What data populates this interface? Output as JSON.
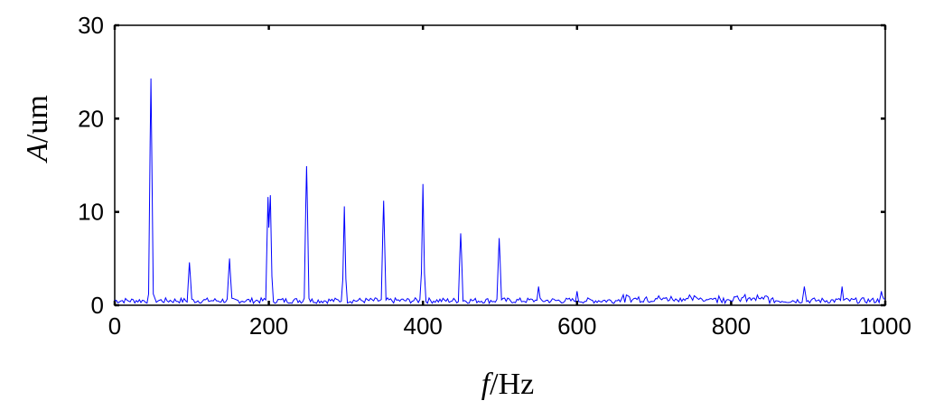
{
  "chart_data": {
    "type": "line",
    "title": "",
    "xlabel": {
      "symbol": "f",
      "unit": "/Hz"
    },
    "ylabel": {
      "symbol": "A",
      "unit": "/um"
    },
    "xlim": [
      0,
      1000
    ],
    "ylim": [
      0,
      30
    ],
    "x_ticks": [
      "0",
      "200",
      "400",
      "600",
      "800",
      "1000"
    ],
    "y_ticks": [
      "0",
      "10",
      "20",
      "30"
    ],
    "grid": false,
    "line_color": "#0000ff",
    "series": [
      {
        "peaks": [
          {
            "x": 47,
            "y": 24.3
          },
          {
            "x": 97,
            "y": 4.6
          },
          {
            "x": 149,
            "y": 5.0
          },
          {
            "x": 199,
            "y": 11.6
          },
          {
            "x": 202,
            "y": 11.8
          },
          {
            "x": 249,
            "y": 14.9
          },
          {
            "x": 298,
            "y": 10.6
          },
          {
            "x": 349,
            "y": 11.2
          },
          {
            "x": 400,
            "y": 13.0
          },
          {
            "x": 449,
            "y": 7.7
          },
          {
            "x": 499,
            "y": 7.2
          },
          {
            "x": 550,
            "y": 2.0
          },
          {
            "x": 600,
            "y": 1.5
          },
          {
            "x": 895,
            "y": 2.0
          },
          {
            "x": 944,
            "y": 2.0
          },
          {
            "x": 995,
            "y": 1.5
          }
        ],
        "noise_floor": 0.5
      }
    ]
  }
}
